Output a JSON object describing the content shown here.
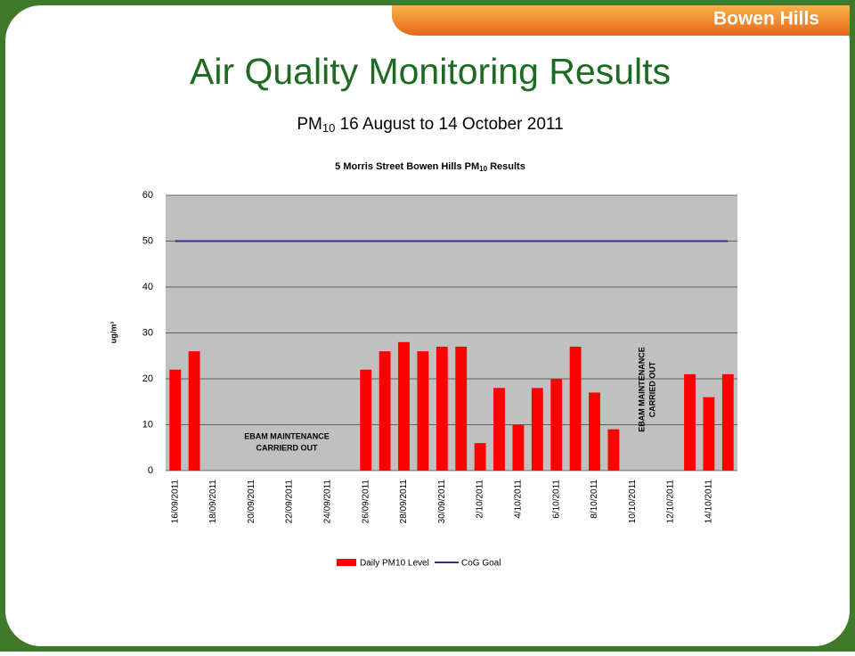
{
  "header": {
    "tab": "Bowen Hills",
    "title": "Air Quality Monitoring Results",
    "subtitle": {
      "prefix": "PM",
      "sub": "10",
      "rest": " 16 August to 14 October 2011"
    }
  },
  "chart_data": {
    "type": "bar",
    "title": {
      "prefix": "5 Morris Street Bowen Hills PM",
      "sub": "10",
      "rest": " Results"
    },
    "y_label": "ug/m³",
    "categories": [
      "16/09/2011",
      null,
      "18/09/2011",
      null,
      "20/09/2011",
      null,
      "22/09/2011",
      null,
      "24/09/2011",
      null,
      "26/09/2011",
      null,
      "28/09/2011",
      null,
      "30/09/2011",
      null,
      "2/10/2011",
      null,
      "4/10/2011",
      null,
      "6/10/2011",
      null,
      "8/10/2011",
      null,
      "10/10/2011",
      null,
      "12/10/2011",
      null,
      "14/10/2011",
      null
    ],
    "series": [
      {
        "name": "Daily PM10 Level",
        "type": "bar",
        "color": "#ff0000",
        "values": [
          22,
          26,
          null,
          null,
          null,
          null,
          null,
          null,
          null,
          null,
          22,
          26,
          28,
          26,
          27,
          27,
          6,
          18,
          10,
          18,
          20,
          27,
          17,
          9,
          null,
          null,
          null,
          21,
          16,
          21
        ]
      },
      {
        "name": "CoG Goal",
        "type": "line",
        "color": "#2e3192",
        "values": [
          50,
          50,
          50,
          50,
          50,
          50,
          50,
          50,
          50,
          50,
          50,
          50,
          50,
          50,
          50,
          50,
          50,
          50,
          50,
          50,
          50,
          50,
          50,
          50,
          50,
          50,
          50,
          50,
          50,
          50
        ]
      }
    ],
    "ylim": [
      0,
      60
    ],
    "yticks": [
      0,
      10,
      20,
      30,
      40,
      50,
      60
    ],
    "grid": true,
    "annotations": [
      {
        "lines": [
          "EBAM MAINTENANCE",
          "CARRIERD OUT"
        ]
      },
      {
        "lines": [
          "EBAM  MAINTENANCE",
          "CARRIED OUT"
        ]
      }
    ]
  }
}
